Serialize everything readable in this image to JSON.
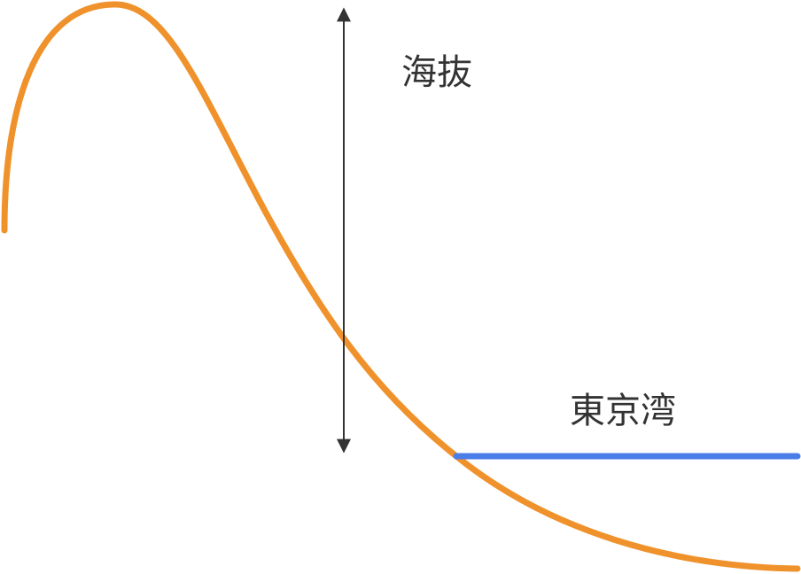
{
  "labels": {
    "altitude": "海抜",
    "bay": "東京湾"
  }
}
